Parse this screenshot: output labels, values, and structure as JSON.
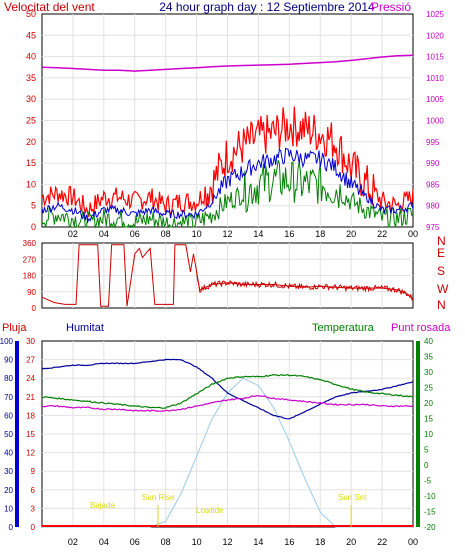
{
  "header": {
    "wind_speed_label": "Velocitat del vent",
    "title": "24 hour graph day : 12 Septiembre 2014",
    "pressure_label": "Pressió"
  },
  "legend": {
    "rain": "Pluja",
    "humidity": "Humitat",
    "temperature": "Temperatura",
    "dew_point": "Punt rosada"
  },
  "colors": {
    "wind_gust": "#ff0000",
    "wind_avg": "#0000cc",
    "wind_min": "#008000",
    "pressure": "#cc00cc",
    "direction": "#cc0000",
    "humidity": "#000099",
    "temperature": "#008000",
    "dew_point": "#cc00cc",
    "rain": "#ff0000",
    "solar": "#99ccee",
    "sun_label": "#dddd00"
  },
  "x_ticks": [
    "02",
    "04",
    "06",
    "08",
    "10",
    "12",
    "14",
    "16",
    "18",
    "20",
    "22",
    "00"
  ],
  "chart_data": [
    {
      "type": "line",
      "title": "24 hour graph day : 12 Septiembre 2014",
      "ylabel": "Velocitat del vent",
      "y2label": "Pressió",
      "ylim": [
        0,
        50
      ],
      "y2lim": [
        975,
        1025
      ],
      "yticks": [
        0,
        5,
        10,
        15,
        20,
        25,
        30,
        35,
        40,
        45,
        50
      ],
      "y2ticks": [
        975,
        980,
        985,
        990,
        995,
        1000,
        1005,
        1010,
        1015,
        1020,
        1025
      ],
      "hours": [
        0,
        1,
        2,
        3,
        4,
        5,
        6,
        7,
        8,
        9,
        10,
        11,
        12,
        13,
        14,
        15,
        16,
        17,
        18,
        19,
        20,
        21,
        22,
        23,
        24
      ],
      "series": [
        {
          "key": "gust",
          "values": [
            7,
            8,
            7,
            4,
            7,
            7,
            6,
            7,
            5,
            6,
            6,
            10,
            17,
            19,
            21,
            22,
            24,
            23,
            22,
            20,
            14,
            10,
            6,
            5,
            7
          ]
        },
        {
          "key": "avg",
          "values": [
            4,
            5,
            4,
            2,
            4,
            4,
            3,
            4,
            3,
            3,
            3,
            6,
            11,
            13,
            15,
            16,
            17,
            16,
            16,
            14,
            10,
            7,
            4,
            4,
            5
          ]
        },
        {
          "key": "min",
          "values": [
            2,
            3,
            2,
            1,
            2,
            2,
            1,
            2,
            1,
            1,
            1,
            3,
            6,
            8,
            10,
            11,
            11,
            10,
            10,
            9,
            6,
            4,
            2,
            2,
            3
          ]
        },
        {
          "key": "pressure",
          "values": [
            1012.5,
            1012.4,
            1012.2,
            1012.0,
            1011.8,
            1011.8,
            1011.6,
            1011.8,
            1012.0,
            1012.2,
            1012.4,
            1012.6,
            1012.8,
            1012.9,
            1013.0,
            1013.1,
            1013.2,
            1013.4,
            1013.6,
            1013.8,
            1014.1,
            1014.5,
            1014.9,
            1015.2,
            1015.3
          ]
        }
      ]
    },
    {
      "type": "line",
      "yticks": [
        0,
        90,
        180,
        270,
        360
      ],
      "direction_labels": [
        "N",
        "W",
        "S",
        "E",
        "N"
      ],
      "ylim": [
        0,
        360
      ],
      "hours": [
        0,
        0.8,
        1.5,
        2.2,
        2.4,
        3.6,
        3.8,
        4.3,
        4.5,
        5.3,
        5.5,
        6.0,
        6.3,
        6.5,
        7.0,
        7.3,
        7.5,
        8.5,
        8.6,
        9.3,
        9.6,
        9.8,
        10.2,
        11,
        12,
        13,
        14,
        15,
        16,
        17,
        18,
        19,
        20,
        21,
        22,
        23,
        23.6,
        24
      ],
      "values": [
        60,
        30,
        20,
        20,
        350,
        350,
        10,
        10,
        350,
        350,
        10,
        300,
        330,
        280,
        330,
        20,
        20,
        20,
        350,
        350,
        200,
        300,
        100,
        130,
        140,
        130,
        130,
        130,
        120,
        115,
        120,
        115,
        110,
        110,
        110,
        100,
        80,
        50
      ]
    },
    {
      "type": "line",
      "ylim_rain": [
        0,
        30
      ],
      "yticks_rain": [
        0,
        3,
        6,
        9,
        12,
        15,
        18,
        21,
        24,
        27,
        30
      ],
      "ylim_humidity": [
        0,
        100
      ],
      "yticks_humidity": [
        0,
        10,
        20,
        30,
        40,
        50,
        60,
        70,
        80,
        90,
        100
      ],
      "ylim_temp": [
        -20,
        40
      ],
      "yticks_temp": [
        -20,
        -15,
        -10,
        -5,
        0,
        5,
        10,
        15,
        20,
        25,
        30,
        35,
        40
      ],
      "hours": [
        0,
        1,
        2,
        3,
        4,
        5,
        6,
        7,
        8,
        9,
        10,
        11,
        12,
        13,
        14,
        15,
        16,
        17,
        18,
        19,
        20,
        21,
        22,
        23,
        24
      ],
      "series": [
        {
          "key": "humidity",
          "name": "Humitat",
          "values": [
            85,
            86,
            87,
            87,
            88,
            88,
            88,
            89,
            90,
            90,
            86,
            80,
            72,
            68,
            64,
            60,
            58,
            62,
            66,
            70,
            72,
            73,
            74,
            76,
            78
          ]
        },
        {
          "key": "temperature",
          "name": "Temperatura",
          "values": [
            22,
            21.5,
            21,
            20.5,
            20,
            19.5,
            19,
            18.5,
            18.5,
            20,
            23,
            26,
            28,
            28.5,
            28.5,
            29,
            29,
            28.5,
            27.5,
            26,
            24.5,
            23.5,
            23,
            22.5,
            22
          ]
        },
        {
          "key": "dew_point",
          "name": "Punt rosada",
          "values": [
            19,
            19,
            18.5,
            18.5,
            18,
            18,
            17.5,
            17.5,
            17.5,
            18,
            19,
            20,
            21,
            21.5,
            22.5,
            21.5,
            21,
            20.5,
            20,
            19.5,
            19.5,
            19.5,
            19,
            19,
            19
          ]
        },
        {
          "key": "rain",
          "name": "Pluja",
          "values": [
            0,
            0,
            0,
            0,
            0,
            0,
            0,
            0,
            0,
            0,
            0,
            0,
            0,
            0,
            0,
            0,
            0,
            0,
            0,
            0,
            0,
            0,
            0,
            0,
            0
          ]
        },
        {
          "key": "solar",
          "values": [
            0,
            0,
            0,
            0,
            0,
            0,
            0,
            0,
            3,
            18,
            38,
            58,
            72,
            80,
            76,
            64,
            46,
            26,
            8,
            0,
            0,
            0,
            0,
            0,
            0
          ]
        }
      ],
      "annotations": {
        "dawn": "Bajada",
        "sunrise": "Sun Rise",
        "noon": "Lowtide",
        "sunset": "Sun Set"
      }
    }
  ]
}
